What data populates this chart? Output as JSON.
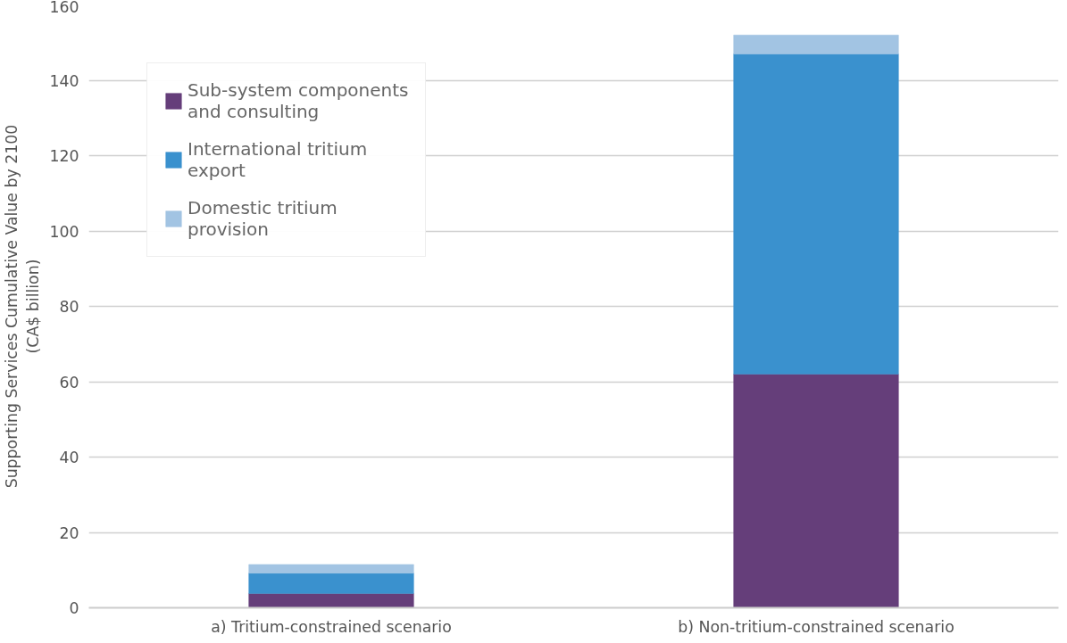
{
  "chart_data": {
    "type": "bar",
    "stacked": true,
    "ylabel": "Supporting Services Cumulative Value by 2100 (CA$ billion)",
    "categories": [
      "a) Tritium-constrained scenario",
      "b) Non-tritium-constrained scenario"
    ],
    "series": [
      {
        "name": "Sub-system components and consulting",
        "color": "#653e7a",
        "values": [
          3.8,
          62
        ]
      },
      {
        "name": "International tritium export",
        "color": "#3a91ce",
        "values": [
          5.4,
          85
        ]
      },
      {
        "name": "Domestic tritium provision",
        "color": "#a2c4e3",
        "values": [
          2.3,
          5
        ]
      }
    ],
    "ylim": [
      0,
      160
    ],
    "yticks": [
      0,
      20,
      40,
      60,
      80,
      100,
      120,
      140,
      160
    ],
    "grid": "y",
    "legend": "top left"
  }
}
